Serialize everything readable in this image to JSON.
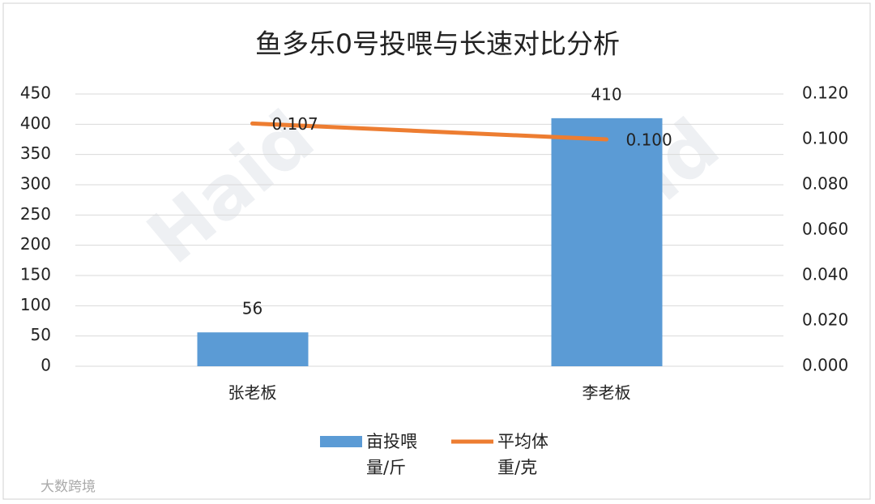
{
  "chart_data": {
    "type": "bar",
    "title": "鱼多乐0号投喂与长速对比分析",
    "categories": [
      "张老板",
      "李老板"
    ],
    "series": [
      {
        "name": "亩投喂量/斤",
        "type": "bar",
        "color": "#5b9bd5",
        "values": [
          56,
          410
        ]
      },
      {
        "name": "平均体重/克",
        "type": "line",
        "axis": "y2",
        "color": "#ed7d31",
        "values": [
          0.107,
          0.1
        ],
        "value_labels": [
          "0.107",
          "0.100"
        ]
      }
    ],
    "ylim": [
      0,
      450
    ],
    "yticks": [
      0,
      50,
      100,
      150,
      200,
      250,
      300,
      350,
      400,
      450
    ],
    "y2lim": [
      0,
      0.12
    ],
    "y2ticks": [
      {
        "value": 0,
        "label": "0.000"
      },
      {
        "value": 0.02,
        "label": "0.020"
      },
      {
        "value": 0.04,
        "label": "0.040"
      },
      {
        "value": 0.06,
        "label": "0.060"
      },
      {
        "value": 0.08,
        "label": "0.080"
      },
      {
        "value": 0.1,
        "label": "0.100"
      },
      {
        "value": 0.12,
        "label": "0.120"
      }
    ],
    "grid": true,
    "legend": "bottom",
    "watermark": "Haid",
    "footer": "大数跨境"
  }
}
